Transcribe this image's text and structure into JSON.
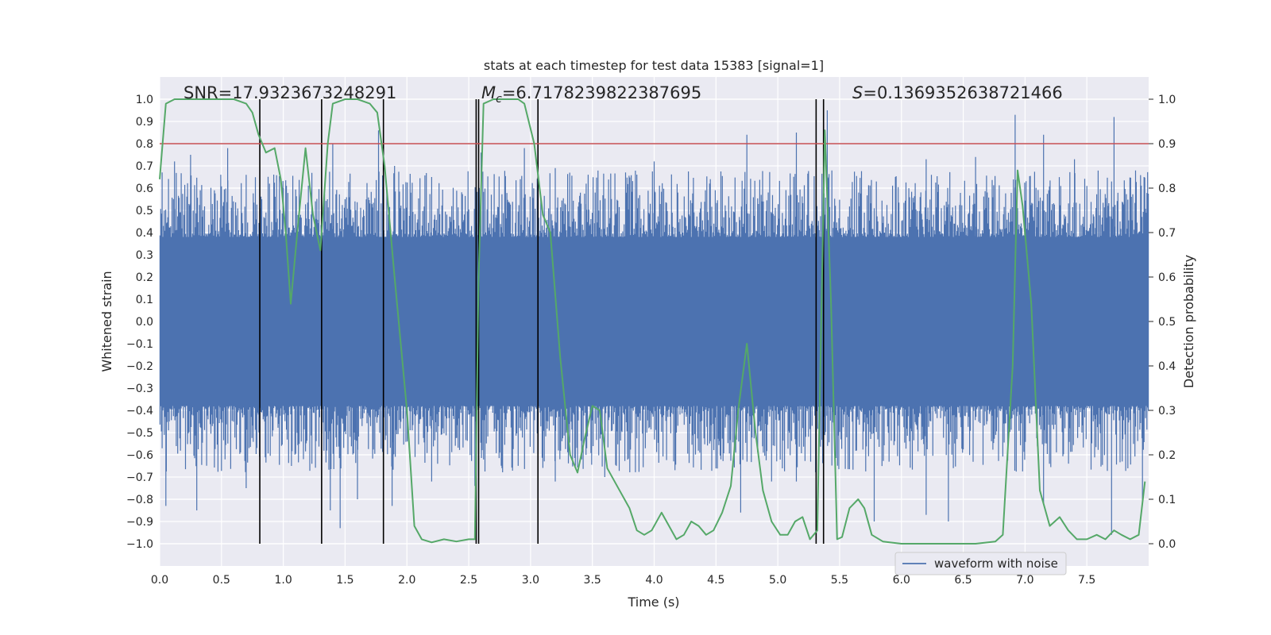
{
  "chart_data": {
    "type": "line",
    "title": "stats at each timestep for test data 15383 [signal=1]",
    "xlabel": "Time (s)",
    "ylabel": "Whitened strain",
    "y2label": "Detection probability",
    "xlim": [
      0.0,
      8.0
    ],
    "ylim": [
      -1.1,
      1.1
    ],
    "y2lim": [
      -0.05,
      1.05
    ],
    "xticks": [
      "0.0",
      "0.5",
      "1.0",
      "1.5",
      "2.0",
      "2.5",
      "3.0",
      "3.5",
      "4.0",
      "4.5",
      "5.0",
      "5.5",
      "6.0",
      "6.5",
      "7.0",
      "7.5"
    ],
    "yticks": [
      "1.0",
      "0.9",
      "0.8",
      "0.7",
      "0.6",
      "0.5",
      "0.4",
      "0.3",
      "0.2",
      "0.1",
      "0.0",
      "-0.1",
      "-0.2",
      "-0.3",
      "-0.4",
      "-0.5",
      "-0.6",
      "-0.7",
      "-0.8",
      "-0.9",
      "-1.0"
    ],
    "y2ticks": [
      "1.0",
      "0.9",
      "0.8",
      "0.7",
      "0.6",
      "0.5",
      "0.4",
      "0.3",
      "0.2",
      "0.1",
      "0.0"
    ],
    "grid": true,
    "legend": {
      "position": "bottom-right",
      "entries": [
        "waveform with noise"
      ]
    },
    "annotations": {
      "snr": "SNR=17.9323673248291",
      "mc_symbol": "M",
      "mc_sub": "c",
      "mc_value": "=6.7178239822387695",
      "s_symbol": "S",
      "s_value": "=0.1369352638721466"
    },
    "threshold": {
      "axis": "y2",
      "value": 0.9,
      "color": "#c44e52"
    },
    "vlines": [
      0.81,
      1.31,
      1.81,
      2.56,
      2.58,
      3.06,
      5.31,
      5.37
    ],
    "series": [
      {
        "name": "waveform with noise",
        "color": "#4c72b0",
        "axis": "y",
        "core_band": [
          -0.38,
          0.38
        ],
        "peaks_up": [
          [
            0.12,
            0.72
          ],
          [
            0.25,
            0.75
          ],
          [
            0.55,
            0.78
          ],
          [
            0.7,
            0.66
          ],
          [
            1.0,
            0.6
          ],
          [
            1.4,
            0.8
          ],
          [
            1.77,
            0.86
          ],
          [
            1.9,
            0.7
          ],
          [
            2.2,
            0.65
          ],
          [
            2.6,
            0.76
          ],
          [
            2.95,
            0.78
          ],
          [
            3.2,
            0.69
          ],
          [
            3.45,
            0.62
          ],
          [
            4.0,
            0.72
          ],
          [
            4.75,
            0.84
          ],
          [
            5.15,
            0.85
          ],
          [
            5.4,
            0.95
          ],
          [
            6.2,
            0.73
          ],
          [
            6.6,
            0.74
          ],
          [
            6.92,
            0.93
          ],
          [
            7.15,
            0.84
          ],
          [
            7.4,
            0.73
          ],
          [
            7.72,
            0.92
          ]
        ],
        "peaks_down": [
          [
            0.05,
            -0.83
          ],
          [
            0.3,
            -0.85
          ],
          [
            0.7,
            -0.75
          ],
          [
            1.38,
            -0.85
          ],
          [
            1.46,
            -0.93
          ],
          [
            1.6,
            -0.8
          ],
          [
            1.88,
            -0.83
          ],
          [
            2.2,
            -0.72
          ],
          [
            2.55,
            -0.74
          ],
          [
            3.2,
            -0.72
          ],
          [
            3.6,
            -0.7
          ],
          [
            4.7,
            -0.86
          ],
          [
            4.95,
            -0.72
          ],
          [
            5.15,
            -0.72
          ],
          [
            5.78,
            -0.9
          ],
          [
            6.2,
            -0.87
          ],
          [
            6.38,
            -0.9
          ],
          [
            7.15,
            -0.82
          ],
          [
            7.7,
            -0.96
          ],
          [
            7.95,
            -0.82
          ]
        ]
      },
      {
        "name": "",
        "color": "#55a868",
        "axis": "y2",
        "x": [
          0.0,
          0.05,
          0.12,
          0.2,
          0.4,
          0.6,
          0.7,
          0.75,
          0.8,
          0.86,
          0.93,
          0.98,
          1.02,
          1.06,
          1.12,
          1.18,
          1.24,
          1.3,
          1.36,
          1.4,
          1.5,
          1.6,
          1.7,
          1.76,
          1.82,
          1.9,
          2.0,
          2.06,
          2.12,
          2.2,
          2.3,
          2.4,
          2.5,
          2.55,
          2.58,
          2.62,
          2.7,
          2.9,
          2.95,
          3.03,
          3.1,
          3.16,
          3.24,
          3.32,
          3.38,
          3.44,
          3.5,
          3.56,
          3.62,
          3.7,
          3.8,
          3.86,
          3.92,
          3.98,
          4.06,
          4.12,
          4.18,
          4.24,
          4.3,
          4.36,
          4.42,
          4.48,
          4.55,
          4.62,
          4.68,
          4.75,
          4.82,
          4.88,
          4.95,
          5.02,
          5.08,
          5.14,
          5.2,
          5.26,
          5.32,
          5.38,
          5.43,
          5.48,
          5.52,
          5.58,
          5.65,
          5.7,
          5.76,
          5.85,
          6.0,
          6.2,
          6.4,
          6.6,
          6.7,
          6.76,
          6.82,
          6.9,
          6.94,
          6.98,
          7.05,
          7.12,
          7.2,
          7.28,
          7.35,
          7.42,
          7.5,
          7.58,
          7.65,
          7.72,
          7.78,
          7.85,
          7.92,
          7.97
        ],
        "y": [
          0.82,
          0.99,
          1.0,
          1.0,
          1.0,
          1.0,
          0.99,
          0.97,
          0.92,
          0.88,
          0.89,
          0.82,
          0.7,
          0.54,
          0.72,
          0.89,
          0.74,
          0.66,
          0.9,
          0.99,
          1.0,
          1.0,
          0.99,
          0.97,
          0.85,
          0.6,
          0.3,
          0.04,
          0.01,
          0.003,
          0.01,
          0.005,
          0.01,
          0.01,
          0.6,
          0.99,
          1.0,
          1.0,
          0.99,
          0.9,
          0.74,
          0.7,
          0.42,
          0.2,
          0.16,
          0.24,
          0.31,
          0.3,
          0.17,
          0.13,
          0.08,
          0.03,
          0.02,
          0.03,
          0.07,
          0.04,
          0.01,
          0.02,
          0.05,
          0.04,
          0.02,
          0.03,
          0.07,
          0.13,
          0.3,
          0.45,
          0.25,
          0.12,
          0.05,
          0.02,
          0.02,
          0.05,
          0.06,
          0.01,
          0.03,
          0.93,
          0.55,
          0.01,
          0.015,
          0.08,
          0.1,
          0.08,
          0.02,
          0.005,
          0.0,
          0.0,
          0.0,
          0.0,
          0.003,
          0.005,
          0.02,
          0.4,
          0.84,
          0.76,
          0.54,
          0.12,
          0.04,
          0.06,
          0.03,
          0.01,
          0.01,
          0.02,
          0.01,
          0.03,
          0.02,
          0.01,
          0.02,
          0.14
        ]
      }
    ]
  }
}
